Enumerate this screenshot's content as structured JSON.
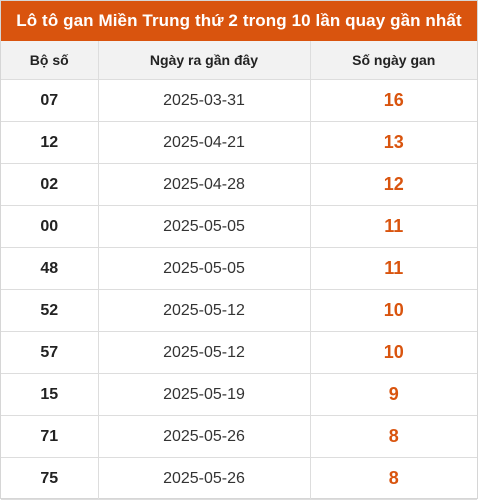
{
  "title": "Lô tô gan Miền Trung thứ 2 trong 10 lần quay gần nhất",
  "colors": {
    "accent": "#d9540e",
    "header_bg": "#f2f2f2",
    "border": "#dddddd"
  },
  "headers": {
    "number": "Bộ số",
    "last_date": "Ngày ra gần đây",
    "days": "Số ngày gan"
  },
  "rows": [
    {
      "number": "07",
      "last_date": "2025-03-31",
      "days": "16"
    },
    {
      "number": "12",
      "last_date": "2025-04-21",
      "days": "13"
    },
    {
      "number": "02",
      "last_date": "2025-04-28",
      "days": "12"
    },
    {
      "number": "00",
      "last_date": "2025-05-05",
      "days": "11"
    },
    {
      "number": "48",
      "last_date": "2025-05-05",
      "days": "11"
    },
    {
      "number": "52",
      "last_date": "2025-05-12",
      "days": "10"
    },
    {
      "number": "57",
      "last_date": "2025-05-12",
      "days": "10"
    },
    {
      "number": "15",
      "last_date": "2025-05-19",
      "days": "9"
    },
    {
      "number": "71",
      "last_date": "2025-05-26",
      "days": "8"
    },
    {
      "number": "75",
      "last_date": "2025-05-26",
      "days": "8"
    }
  ]
}
